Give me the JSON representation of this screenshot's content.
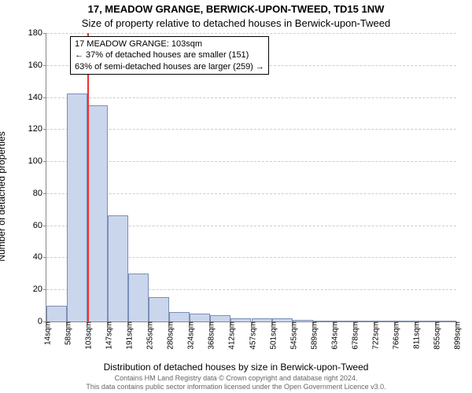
{
  "title_line1": "17, MEADOW GRANGE, BERWICK-UPON-TWEED, TD15 1NW",
  "title_line2": "Size of property relative to detached houses in Berwick-upon-Tweed",
  "ylabel": "Number of detached properties",
  "xlabel": "Distribution of detached houses by size in Berwick-upon-Tweed",
  "footer_line1": "Contains HM Land Registry data © Crown copyright and database right 2024.",
  "footer_line2": "This data contains public sector information licensed under the Open Government Licence v3.0.",
  "chart": {
    "type": "histogram",
    "ylim": [
      0,
      180
    ],
    "ytick_step": 20,
    "bar_fill": "#cad6eb",
    "bar_stroke": "#7a8fb8",
    "grid_color": "#cccccc",
    "axis_color": "#888888",
    "background": "#ffffff",
    "marker_color": "#ee3030",
    "marker_x_value": 103,
    "x_min_data": 14,
    "x_max_data": 899,
    "x_tick_labels": [
      "14sqm",
      "58sqm",
      "103sqm",
      "147sqm",
      "191sqm",
      "235sqm",
      "280sqm",
      "324sqm",
      "368sqm",
      "412sqm",
      "457sqm",
      "501sqm",
      "545sqm",
      "589sqm",
      "634sqm",
      "678sqm",
      "722sqm",
      "766sqm",
      "811sqm",
      "855sqm",
      "899sqm"
    ],
    "bars": [
      10,
      142,
      135,
      66,
      30,
      15,
      6,
      5,
      4,
      2,
      2,
      2,
      1,
      0,
      0,
      0,
      0,
      0,
      0,
      0
    ],
    "annotation": {
      "line1": "17 MEADOW GRANGE: 103sqm",
      "line2": "← 37% of detached houses are smaller (151)",
      "line3": "63% of semi-detached houses are larger (259) →"
    }
  }
}
